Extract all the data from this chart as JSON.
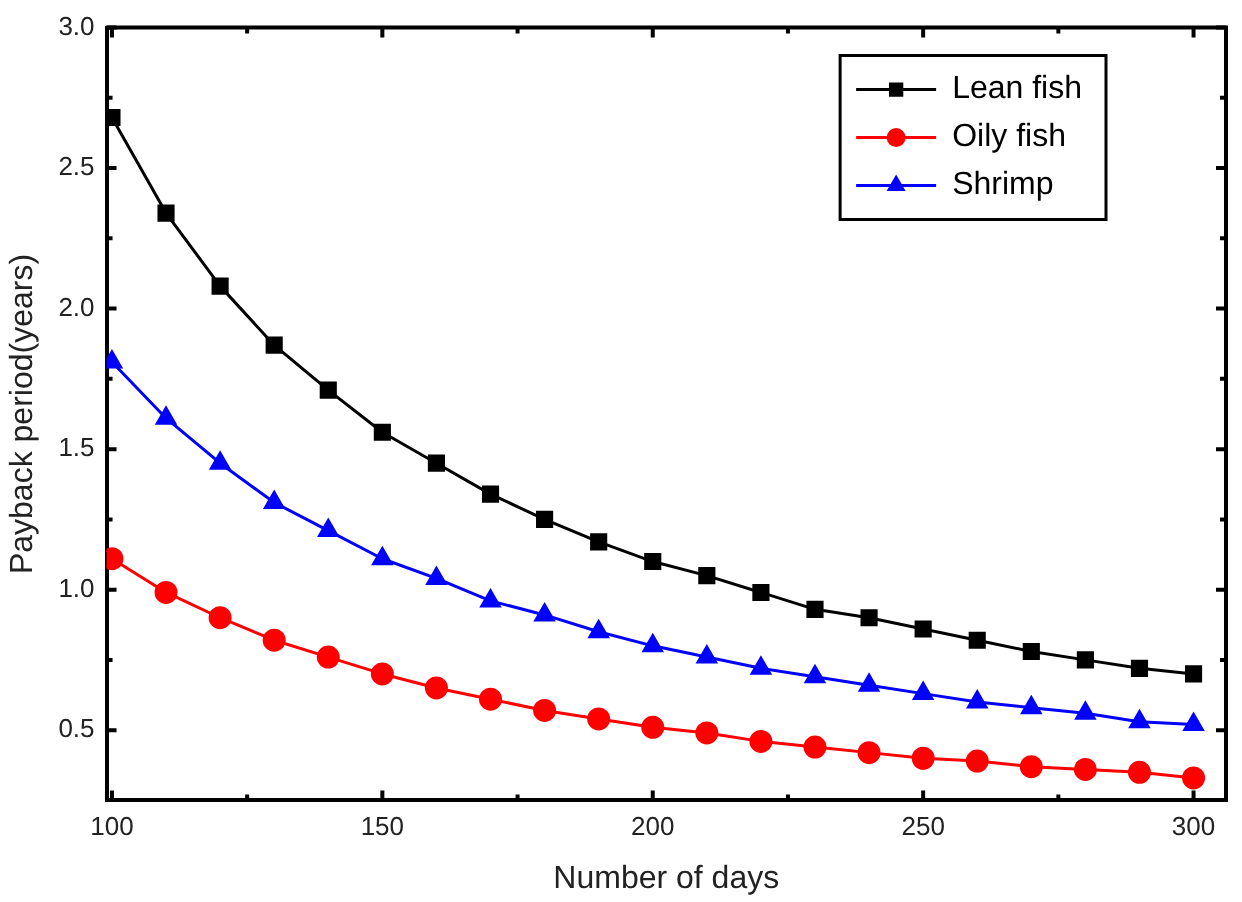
{
  "chart_data": {
    "type": "line",
    "xlabel": "Number of days",
    "ylabel": "Payback period(years)",
    "x": [
      100,
      110,
      120,
      130,
      140,
      150,
      160,
      170,
      180,
      190,
      200,
      210,
      220,
      230,
      240,
      250,
      260,
      270,
      280,
      290,
      300
    ],
    "series": [
      {
        "name": "Lean fish",
        "color": "#000000",
        "marker": "square",
        "values": [
          2.68,
          2.34,
          2.08,
          1.87,
          1.71,
          1.56,
          1.45,
          1.34,
          1.25,
          1.17,
          1.1,
          1.05,
          0.99,
          0.93,
          0.9,
          0.86,
          0.82,
          0.78,
          0.75,
          0.72,
          0.7
        ]
      },
      {
        "name": "Oily fish",
        "color": "#ff0000",
        "marker": "circle",
        "values": [
          1.11,
          0.99,
          0.9,
          0.82,
          0.76,
          0.7,
          0.65,
          0.61,
          0.57,
          0.54,
          0.51,
          0.49,
          0.46,
          0.44,
          0.42,
          0.4,
          0.39,
          0.37,
          0.36,
          0.35,
          0.33
        ]
      },
      {
        "name": "Shrimp",
        "color": "#0000ff",
        "marker": "triangle",
        "values": [
          1.81,
          1.61,
          1.45,
          1.31,
          1.21,
          1.11,
          1.04,
          0.96,
          0.91,
          0.85,
          0.8,
          0.76,
          0.72,
          0.69,
          0.66,
          0.63,
          0.6,
          0.58,
          0.56,
          0.53,
          0.52
        ]
      }
    ],
    "xlim": [
      99,
      306
    ],
    "xticks": [
      100,
      {
        "value": 125,
        "label": null
      },
      150,
      {
        "value": 175,
        "label": null
      },
      200,
      {
        "value": 225,
        "label": null
      },
      250,
      {
        "value": 275,
        "label": null
      },
      300
    ],
    "ylim": [
      0.25,
      3.0
    ],
    "yticks": [
      {
        "value": 0.5,
        "label": "0.5"
      },
      {
        "value": 0.75,
        "label": null
      },
      {
        "value": 1.0,
        "label": "1.0"
      },
      {
        "value": 1.25,
        "label": null
      },
      {
        "value": 1.5,
        "label": "1.5"
      },
      {
        "value": 1.75,
        "label": null
      },
      {
        "value": 2.0,
        "label": "2.0"
      },
      {
        "value": 2.25,
        "label": null
      },
      {
        "value": 2.5,
        "label": "2.5"
      },
      {
        "value": 2.75,
        "label": null
      },
      {
        "value": 3.0,
        "label": "3.0"
      }
    ],
    "grid": false,
    "legend": "top right",
    "line_style": "solid"
  }
}
